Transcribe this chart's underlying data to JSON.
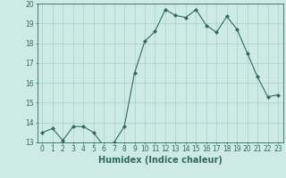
{
  "x": [
    0,
    1,
    2,
    3,
    4,
    5,
    6,
    7,
    8,
    9,
    10,
    11,
    12,
    13,
    14,
    15,
    16,
    17,
    18,
    19,
    20,
    21,
    22,
    23
  ],
  "y": [
    13.5,
    13.7,
    13.1,
    13.8,
    13.8,
    13.5,
    12.8,
    13.0,
    13.8,
    16.5,
    18.1,
    18.6,
    19.7,
    19.4,
    19.3,
    19.7,
    18.9,
    18.55,
    19.35,
    18.7,
    17.5,
    16.3,
    15.3,
    15.4
  ],
  "line_color": "#2e6b5e",
  "marker": "D",
  "marker_size": 2.0,
  "bg_color": "#ceeae4",
  "grid_color": "#a8cfc8",
  "xlabel": "Humidex (Indice chaleur)",
  "xlim": [
    -0.5,
    23.5
  ],
  "ylim": [
    13,
    20
  ],
  "yticks": [
    13,
    14,
    15,
    16,
    17,
    18,
    19,
    20
  ],
  "xticks": [
    0,
    1,
    2,
    3,
    4,
    5,
    6,
    7,
    8,
    9,
    10,
    11,
    12,
    13,
    14,
    15,
    16,
    17,
    18,
    19,
    20,
    21,
    22,
    23
  ],
  "tick_label_fontsize": 5.5,
  "xlabel_fontsize": 7.0
}
